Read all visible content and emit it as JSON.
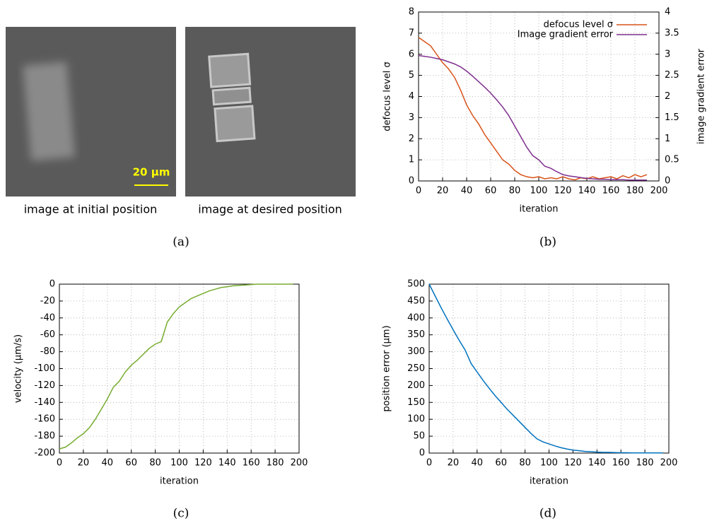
{
  "images": {
    "captions": [
      "image at initial position",
      "image at desired position"
    ],
    "scale_bar": "20 µm"
  },
  "panel_labels": [
    "(a)",
    "(b)",
    "(c)",
    "(d)"
  ],
  "chart_data": [
    {
      "type": "line",
      "xlabel": "iteration",
      "ylabel": "defocus level σ",
      "y2label": "image gradient error",
      "xlim": [
        0,
        200
      ],
      "xticks": [
        0,
        20,
        40,
        60,
        80,
        100,
        120,
        140,
        160,
        180,
        200
      ],
      "ylim": [
        0,
        8
      ],
      "yticks": [
        0,
        1,
        2,
        3,
        4,
        5,
        6,
        7,
        8
      ],
      "y2lim": [
        0,
        4
      ],
      "y2ticks": [
        0,
        0.5,
        1,
        1.5,
        2,
        2.5,
        3,
        3.5,
        4
      ],
      "grid": true,
      "legend": "top-right",
      "x": [
        0,
        5,
        10,
        15,
        20,
        25,
        30,
        35,
        40,
        45,
        50,
        55,
        60,
        65,
        70,
        75,
        80,
        85,
        90,
        95,
        100,
        105,
        110,
        115,
        120,
        125,
        130,
        135,
        140,
        145,
        150,
        155,
        160,
        165,
        170,
        175,
        180,
        185,
        190
      ],
      "series": [
        {
          "name": "defocus level σ",
          "color": "#d95319",
          "values": [
            6.8,
            6.6,
            6.4,
            6.0,
            5.6,
            5.3,
            4.9,
            4.3,
            3.6,
            3.1,
            2.7,
            2.2,
            1.8,
            1.4,
            1.0,
            0.8,
            0.5,
            0.3,
            0.2,
            0.15,
            0.2,
            0.1,
            0.15,
            0.1,
            0.2,
            0.1,
            0.05,
            0.15,
            0.1,
            0.2,
            0.1,
            0.15,
            0.2,
            0.1,
            0.25,
            0.15,
            0.3,
            0.2,
            0.3
          ]
        },
        {
          "name": "Image gradient error",
          "color": "#7e2f8e",
          "axis": "y2",
          "values": [
            2.97,
            2.95,
            2.93,
            2.9,
            2.87,
            2.82,
            2.77,
            2.7,
            2.6,
            2.48,
            2.35,
            2.22,
            2.08,
            1.92,
            1.75,
            1.55,
            1.3,
            1.05,
            0.8,
            0.6,
            0.5,
            0.35,
            0.3,
            0.22,
            0.15,
            0.12,
            0.1,
            0.08,
            0.06,
            0.05,
            0.04,
            0.04,
            0.03,
            0.03,
            0.03,
            0.02,
            0.02,
            0.02,
            0.02
          ]
        }
      ]
    },
    {
      "type": "line",
      "xlabel": "iteration",
      "ylabel": "velocity (µm/s)",
      "xlim": [
        0,
        200
      ],
      "xticks": [
        0,
        20,
        40,
        60,
        80,
        100,
        120,
        140,
        160,
        180,
        200
      ],
      "ylim": [
        -200,
        0
      ],
      "yticks": [
        -200,
        -180,
        -160,
        -140,
        -120,
        -100,
        -80,
        -60,
        -40,
        -20,
        0
      ],
      "grid": true,
      "x": [
        0,
        5,
        10,
        15,
        20,
        25,
        30,
        35,
        40,
        45,
        50,
        55,
        60,
        65,
        70,
        75,
        80,
        85,
        90,
        95,
        100,
        105,
        110,
        115,
        120,
        125,
        130,
        135,
        140,
        145,
        150,
        155,
        160,
        165,
        170,
        175,
        180,
        185,
        190,
        195
      ],
      "series": [
        {
          "color": "#77ac30",
          "values": [
            -195,
            -193,
            -188,
            -182,
            -177,
            -170,
            -160,
            -148,
            -136,
            -122,
            -115,
            -104,
            -96,
            -90,
            -83,
            -76,
            -71,
            -68,
            -45,
            -35,
            -27,
            -22,
            -17,
            -14,
            -11,
            -8,
            -6,
            -4,
            -3,
            -2,
            -1.5,
            -1,
            -0.5,
            0,
            0,
            0,
            0,
            0,
            0,
            0
          ]
        }
      ]
    },
    {
      "type": "line",
      "xlabel": "iteration",
      "ylabel": "position error (µm)",
      "xlim": [
        0,
        200
      ],
      "xticks": [
        0,
        20,
        40,
        60,
        80,
        100,
        120,
        140,
        160,
        180,
        200
      ],
      "ylim": [
        0,
        500
      ],
      "yticks": [
        0,
        50,
        100,
        150,
        200,
        250,
        300,
        350,
        400,
        450,
        500
      ],
      "grid": true,
      "x": [
        0,
        5,
        10,
        15,
        20,
        25,
        30,
        35,
        40,
        45,
        50,
        55,
        60,
        65,
        70,
        75,
        80,
        85,
        90,
        95,
        100,
        105,
        110,
        115,
        120,
        125,
        130,
        135,
        140,
        145,
        150,
        155,
        160,
        165,
        170,
        175,
        180,
        185,
        190,
        195
      ],
      "series": [
        {
          "color": "#0072bd",
          "values": [
            500,
            465,
            430,
            397,
            365,
            334,
            305,
            265,
            240,
            215,
            192,
            170,
            150,
            130,
            112,
            94,
            76,
            58,
            42,
            33,
            27,
            21,
            16,
            12,
            9,
            7,
            5,
            4,
            3,
            2,
            2,
            1.5,
            1,
            1,
            0.5,
            0.5,
            0.5,
            0.5,
            0.5,
            0.5
          ]
        }
      ]
    }
  ]
}
